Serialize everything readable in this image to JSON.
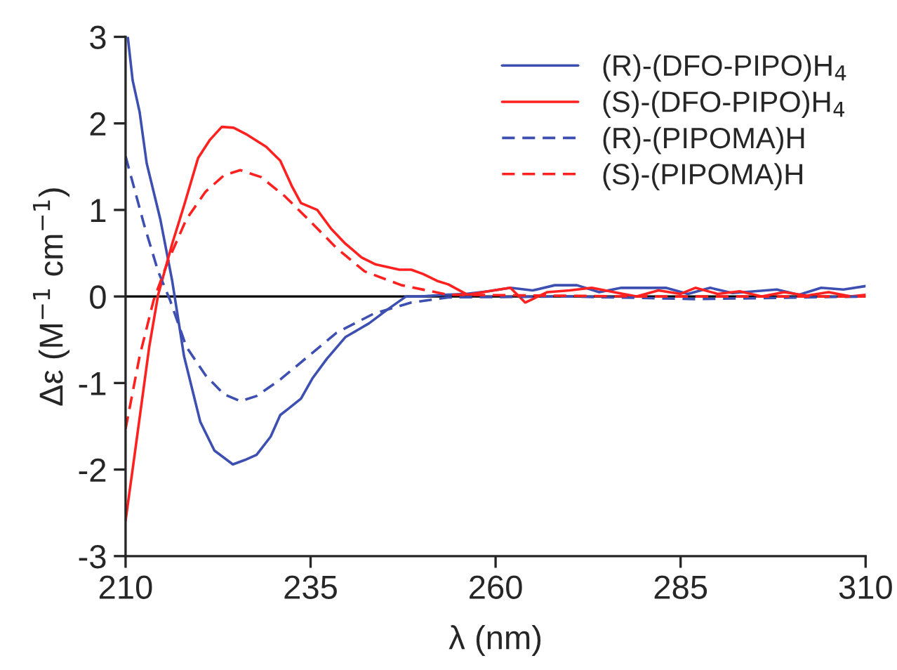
{
  "chart_data": {
    "type": "line",
    "xlabel": "λ (nm)",
    "ylabel": "Δε (M$^{−1}$ cm$^{−1}$)",
    "xlim": [
      210,
      310
    ],
    "xticks": [
      210,
      235,
      260,
      285,
      310
    ],
    "ylim": [
      -3,
      3
    ],
    "yticks": [
      -3,
      -2,
      -1,
      0,
      1,
      2,
      3
    ],
    "grid": false,
    "legend": "top right",
    "marker": "none",
    "ref_lines": [
      {
        "axis": "y",
        "value": 0,
        "color": "#000000"
      }
    ],
    "series": [
      {
        "name": "(R)-(DFO-PIPO)H$_{4}$",
        "color": "#3d4fb0",
        "line_style": "solid",
        "x": [
          210.3,
          210.95,
          211.9,
          212.85,
          214.7,
          216.3,
          217.9,
          220.1,
          222.0,
          224.5,
          226.1,
          227.7,
          229.6,
          230.9,
          232.1,
          233.7,
          235.3,
          237.2,
          239.7,
          242.9,
          245.4,
          247.9,
          250,
          253,
          256,
          259,
          262,
          265,
          268,
          271,
          274,
          277,
          280,
          283,
          286,
          289,
          292,
          295,
          298,
          301,
          304,
          307,
          310
        ],
        "values": [
          3.0,
          2.5,
          2.13,
          1.54,
          0.89,
          0.18,
          -0.69,
          -1.45,
          -1.78,
          -1.94,
          -1.89,
          -1.83,
          -1.62,
          -1.37,
          -1.29,
          -1.18,
          -0.94,
          -0.72,
          -0.47,
          -0.31,
          -0.15,
          0.0,
          0.0,
          0.02,
          0.03,
          0.06,
          0.1,
          0.07,
          0.13,
          0.13,
          0.05,
          0.1,
          0.1,
          0.1,
          0.03,
          0.1,
          0.04,
          0.06,
          0.08,
          0.02,
          0.1,
          0.08,
          0.12
        ]
      },
      {
        "name": "(S)-(DFO-PIPO)H$_{4}$",
        "color": "#ff2020",
        "line_style": "solid",
        "x": [
          210,
          211.3,
          213.2,
          214.4,
          216.3,
          217.9,
          219.8,
          221.4,
          223.0,
          224.6,
          226.4,
          229.0,
          230.9,
          232.5,
          233.7,
          235.9,
          237.8,
          239.7,
          241.9,
          243.8,
          245.4,
          247.0,
          248.6,
          250.2,
          252.1,
          253.6,
          256.2,
          259,
          262,
          264,
          267,
          270,
          273,
          276,
          279,
          282,
          285,
          287,
          290,
          293,
          296,
          299,
          302,
          305,
          308,
          310
        ],
        "values": [
          -2.59,
          -1.78,
          -0.58,
          0.02,
          0.61,
          1.05,
          1.6,
          1.81,
          1.96,
          1.95,
          1.87,
          1.73,
          1.57,
          1.27,
          1.08,
          1.0,
          0.78,
          0.61,
          0.45,
          0.37,
          0.34,
          0.31,
          0.31,
          0.26,
          0.18,
          0.14,
          0.02,
          0.06,
          0.1,
          -0.07,
          0.05,
          0.07,
          0.1,
          0.05,
          0.0,
          0.07,
          0.03,
          0.1,
          0.03,
          0.06,
          0.0,
          0.05,
          0.01,
          0.05,
          0.0,
          0.02
        ]
      },
      {
        "name": "(R)-(PIPOMA)H",
        "color": "#3d4fb0",
        "line_style": "dashed",
        "x": [
          210,
          212.5,
          214.4,
          216.0,
          218.2,
          220.8,
          223.3,
          225.5,
          227.7,
          230.9,
          234.7,
          238.5,
          243.5,
          248.6,
          253.6,
          270,
          287,
          295,
          310
        ],
        "values": [
          1.62,
          0.83,
          0.29,
          -0.04,
          -0.58,
          -0.91,
          -1.13,
          -1.21,
          -1.15,
          -0.96,
          -0.69,
          -0.42,
          -0.2,
          -0.07,
          -0.01,
          0.0,
          -0.03,
          -0.02,
          0.0
        ]
      },
      {
        "name": "(S)-(PIPOMA)H",
        "color": "#ff2020",
        "line_style": "dashed",
        "x": [
          210,
          211.9,
          213.8,
          215.7,
          218.2,
          220.8,
          223.3,
          225.5,
          228.3,
          231.5,
          234.7,
          238.5,
          242.3,
          247.3,
          253.6,
          280,
          310
        ],
        "values": [
          -1.53,
          -0.69,
          -0.04,
          0.4,
          0.89,
          1.21,
          1.4,
          1.46,
          1.38,
          1.16,
          0.89,
          0.56,
          0.29,
          0.13,
          0.02,
          0.0,
          0.0
        ]
      }
    ]
  }
}
